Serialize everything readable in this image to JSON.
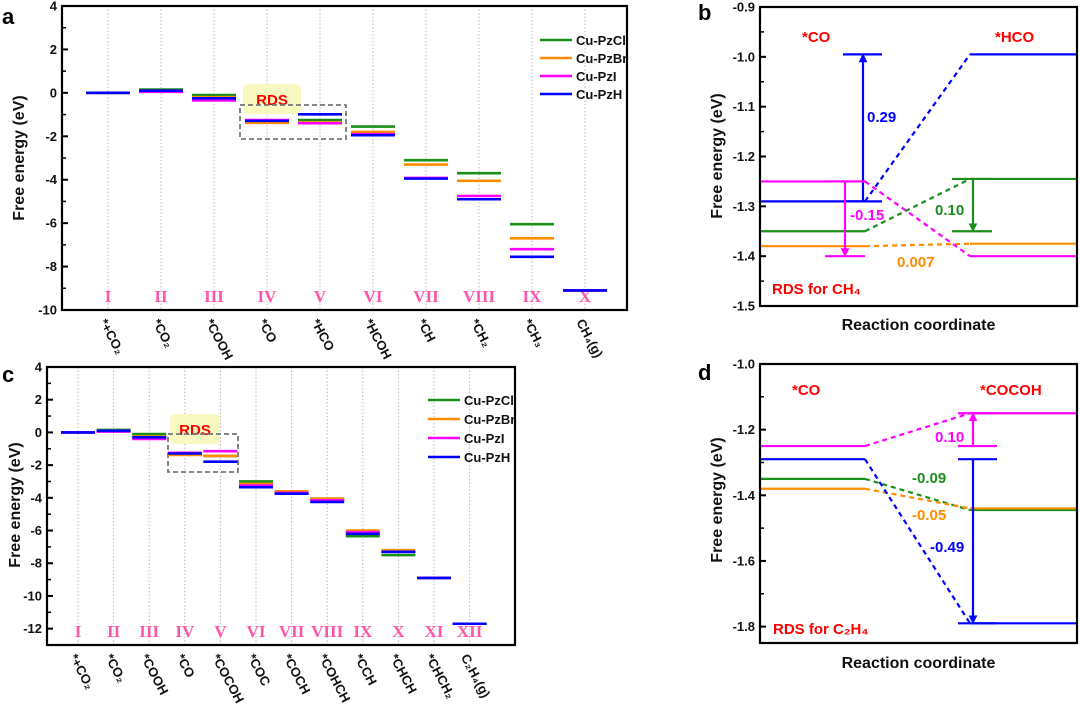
{
  "colors": {
    "Cu-PzCl": "#1a8f1a",
    "Cu-PzBr": "#ff8c00",
    "Cu-PzI": "#ff00ff",
    "Cu-PzH": "#0000ff",
    "roman": "#ff55aa",
    "annotation": "#ff0000",
    "rds_box": "#f7f9c0"
  },
  "chart_data": [
    {
      "panel_label": "a",
      "type": "line",
      "subtype": "energy-level diagram",
      "ylabel": "Free energy (eV)",
      "ylim": [
        -10,
        4
      ],
      "ytick_labels": [
        "4",
        "2",
        "0",
        "-2",
        "-4",
        "-6",
        "-8",
        "-10"
      ],
      "grid": "vertical dotted lines at each step",
      "legend": "top-right",
      "legend_entries": [
        "Cu-PzCl",
        "Cu-PzBr",
        "Cu-PzI",
        "Cu-PzH"
      ],
      "stages": [
        {
          "roman": "I",
          "label": "*+CO₂"
        },
        {
          "roman": "II",
          "label": "*CO₂"
        },
        {
          "roman": "III",
          "label": "*COOH"
        },
        {
          "roman": "IV",
          "label": "*CO"
        },
        {
          "roman": "V",
          "label": "*HCO"
        },
        {
          "roman": "VI",
          "label": "*HCOH"
        },
        {
          "roman": "VII",
          "label": "*CH"
        },
        {
          "roman": "VIII",
          "label": "*CH₂"
        },
        {
          "roman": "IX",
          "label": "*CH₃"
        },
        {
          "roman": "X",
          "label": "CH₄(g)"
        }
      ],
      "series": [
        {
          "name": "Cu-PzCl",
          "values": [
            0,
            0.15,
            -0.1,
            -1.35,
            -1.25,
            -1.55,
            -3.1,
            -3.7,
            -6.05,
            -9.1
          ]
        },
        {
          "name": "Cu-PzBr",
          "values": [
            0,
            0.1,
            -0.2,
            -1.38,
            -1.37,
            -1.8,
            -3.3,
            -4.05,
            -6.7,
            -9.1
          ]
        },
        {
          "name": "Cu-PzI",
          "values": [
            0,
            0.05,
            -0.35,
            -1.25,
            -1.4,
            -1.9,
            -3.92,
            -4.75,
            -7.2,
            -9.1
          ]
        },
        {
          "name": "Cu-PzH",
          "values": [
            0,
            0.1,
            -0.25,
            -1.29,
            -0.99,
            -1.95,
            -3.95,
            -4.9,
            -7.55,
            -9.1
          ]
        }
      ],
      "annotation": "RDS"
    },
    {
      "panel_label": "b",
      "type": "line",
      "subtype": "energy-level diagram",
      "ylabel": "Free energy (eV)",
      "xlabel": "Reaction coordinate",
      "ylim": [
        -1.5,
        -0.9
      ],
      "ytick_labels": [
        "-0.9",
        "-1.0",
        "-1.1",
        "-1.2",
        "-1.3",
        "-1.4",
        "-1.5"
      ],
      "states": [
        "*CO",
        "*HCO"
      ],
      "series": [
        {
          "name": "Cu-PzCl",
          "values": [
            -1.35,
            -1.245
          ]
        },
        {
          "name": "Cu-PzBr",
          "values": [
            -1.38,
            -1.375
          ]
        },
        {
          "name": "Cu-PzI",
          "values": [
            -1.25,
            -1.4
          ]
        },
        {
          "name": "Cu-PzH",
          "values": [
            -1.29,
            -0.995
          ]
        }
      ],
      "steps": [
        {
          "series": "Cu-PzH",
          "label": "0.29"
        },
        {
          "series": "Cu-PzI",
          "label": "-0.15"
        },
        {
          "series": "Cu-PzCl",
          "label": "0.10"
        },
        {
          "series": "Cu-PzBr",
          "label": "0.007"
        }
      ],
      "note": "RDS for CH₄"
    },
    {
      "panel_label": "c",
      "type": "line",
      "subtype": "energy-level diagram",
      "ylabel": "Free energy (eV)",
      "ylim": [
        -13,
        4
      ],
      "ytick_labels": [
        "4",
        "2",
        "0",
        "-2",
        "-4",
        "-6",
        "-8",
        "-10",
        "-12"
      ],
      "grid": "vertical dotted lines at each step",
      "legend": "top-right",
      "legend_entries": [
        "Cu-PzCl",
        "Cu-PzBr",
        "Cu-PzI",
        "Cu-PzH"
      ],
      "stages": [
        {
          "roman": "I",
          "label": "*+CO₂"
        },
        {
          "roman": "II",
          "label": "*CO₂"
        },
        {
          "roman": "III",
          "label": "*COOH"
        },
        {
          "roman": "IV",
          "label": "*CO"
        },
        {
          "roman": "V",
          "label": "*COCOH"
        },
        {
          "roman": "VI",
          "label": "*COC"
        },
        {
          "roman": "VII",
          "label": "*COCH"
        },
        {
          "roman": "VIII",
          "label": "*COHCH"
        },
        {
          "roman": "IX",
          "label": "*CCH"
        },
        {
          "roman": "X",
          "label": "*CHCH"
        },
        {
          "roman": "XI",
          "label": "*CHCH₂"
        },
        {
          "roman": "XII",
          "label": "C₂H₄(g)"
        }
      ],
      "series": [
        {
          "name": "Cu-PzCl",
          "values": [
            0,
            0.15,
            -0.1,
            -1.35,
            -1.44,
            -3.0,
            -3.75,
            -4.05,
            -6.35,
            -7.5,
            -8.9,
            -11.7
          ]
        },
        {
          "name": "Cu-PzBr",
          "values": [
            0,
            0.1,
            -0.25,
            -1.38,
            -1.44,
            -3.15,
            -3.6,
            -4.05,
            -6.0,
            -7.2,
            -8.9,
            -11.7
          ]
        },
        {
          "name": "Cu-PzI",
          "values": [
            0,
            0.05,
            -0.4,
            -1.25,
            -1.15,
            -3.25,
            -3.7,
            -4.15,
            -6.1,
            -7.3,
            -8.9,
            -11.7
          ]
        },
        {
          "name": "Cu-PzH",
          "values": [
            0,
            0.1,
            -0.3,
            -1.29,
            -1.79,
            -3.35,
            -3.75,
            -4.25,
            -6.2,
            -7.3,
            -8.9,
            -11.7
          ]
        }
      ],
      "annotation": "RDS"
    },
    {
      "panel_label": "d",
      "type": "line",
      "subtype": "energy-level diagram",
      "ylabel": "Free energy (eV)",
      "xlabel": "Reaction coordinate",
      "ylim": [
        -1.85,
        -1.0
      ],
      "ytick_labels": [
        "-1.0",
        "-1.2",
        "-1.4",
        "-1.6",
        "-1.8"
      ],
      "states": [
        "*CO",
        "*COCOH"
      ],
      "series": [
        {
          "name": "Cu-PzCl",
          "values": [
            -1.35,
            -1.445
          ]
        },
        {
          "name": "Cu-PzBr",
          "values": [
            -1.38,
            -1.44
          ]
        },
        {
          "name": "Cu-PzI",
          "values": [
            -1.25,
            -1.15
          ]
        },
        {
          "name": "Cu-PzH",
          "values": [
            -1.29,
            -1.79
          ]
        }
      ],
      "steps": [
        {
          "series": "Cu-PzI",
          "label": "0.10"
        },
        {
          "series": "Cu-PzCl",
          "label": "-0.09"
        },
        {
          "series": "Cu-PzBr",
          "label": "-0.05"
        },
        {
          "series": "Cu-PzH",
          "label": "-0.49"
        }
      ],
      "note": "RDS for C₂H₄"
    }
  ]
}
